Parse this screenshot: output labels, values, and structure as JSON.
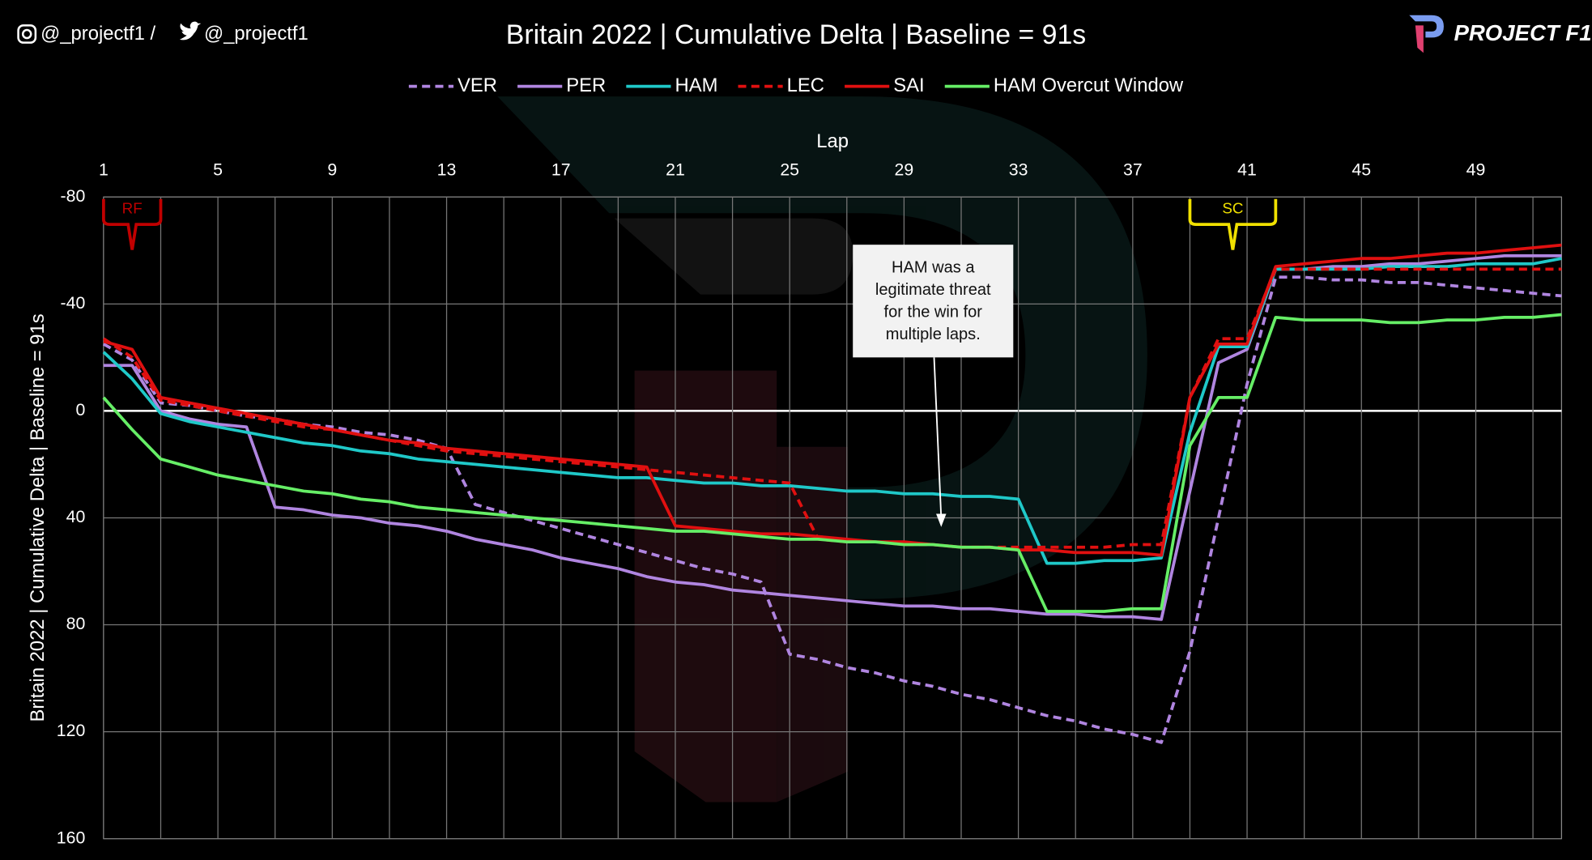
{
  "chart_data": {
    "type": "line",
    "title": "Britain 2022 | Cumulative Delta | Baseline = 91s",
    "handles": [
      "@_projectf1 / ",
      "@_projectf1"
    ],
    "brand": "PROJECT F1",
    "x_label": "Lap",
    "y_label": "Britain 2022 | Cumulative Delta | Baseline = 91s",
    "x": [
      1,
      2,
      3,
      4,
      5,
      6,
      7,
      8,
      9,
      10,
      11,
      12,
      13,
      14,
      15,
      16,
      17,
      18,
      19,
      20,
      21,
      22,
      23,
      24,
      25,
      26,
      27,
      28,
      29,
      30,
      31,
      32,
      33,
      34,
      35,
      36,
      37,
      38,
      39,
      40,
      41,
      42,
      43,
      44,
      45,
      46,
      47,
      48,
      49,
      50,
      51,
      52
    ],
    "xlim": [
      1,
      52
    ],
    "xticks": [
      1,
      5,
      9,
      13,
      17,
      21,
      25,
      29,
      33,
      37,
      41,
      45,
      49
    ],
    "ylim": [
      -80,
      160
    ],
    "yticks": [
      -80,
      -40,
      0,
      40,
      80,
      120,
      160
    ],
    "y_inverted": true,
    "grid": true,
    "series": [
      {
        "name": "VER",
        "color": "#b085e0",
        "dashed": true,
        "values": [
          -25,
          -19,
          -3,
          -2,
          0,
          2,
          3,
          5,
          6,
          8,
          9,
          11,
          14,
          35,
          38,
          41,
          44,
          47,
          50,
          53,
          56,
          59,
          61,
          64,
          91,
          93,
          96,
          98,
          101,
          103,
          106,
          108,
          111,
          114,
          116,
          119,
          121,
          124,
          90,
          40,
          -10,
          -50,
          -50,
          -49,
          -49,
          -48,
          -48,
          -47,
          -46,
          -45,
          -44,
          -43
        ]
      },
      {
        "name": "PER",
        "color": "#b085e0",
        "dashed": false,
        "values": [
          -17,
          -17,
          0,
          3,
          5,
          6,
          36,
          37,
          39,
          40,
          42,
          43,
          45,
          48,
          50,
          52,
          55,
          57,
          59,
          62,
          64,
          65,
          67,
          68,
          69,
          70,
          71,
          72,
          73,
          73,
          74,
          74,
          75,
          76,
          76,
          77,
          77,
          78,
          30,
          -18,
          -23,
          -53,
          -53,
          -54,
          -54,
          -55,
          -55,
          -56,
          -57,
          -58,
          -58,
          -58
        ]
      },
      {
        "name": "HAM",
        "color": "#1fc8c8",
        "dashed": false,
        "values": [
          -22,
          -12,
          1,
          4,
          6,
          8,
          10,
          12,
          13,
          15,
          16,
          18,
          19,
          20,
          21,
          22,
          23,
          24,
          25,
          25,
          26,
          27,
          27,
          28,
          28,
          29,
          30,
          30,
          31,
          31,
          32,
          32,
          33,
          57,
          57,
          56,
          56,
          55,
          8,
          -24,
          -24,
          -53,
          -53,
          -53,
          -53,
          -54,
          -54,
          -54,
          -55,
          -55,
          -55,
          -57
        ]
      },
      {
        "name": "LEC",
        "color": "#e01010",
        "dashed": true,
        "values": [
          -27,
          -20,
          -4,
          -2,
          0,
          2,
          4,
          6,
          7,
          9,
          11,
          13,
          15,
          16,
          17,
          18,
          19,
          20,
          21,
          22,
          23,
          24,
          25,
          26,
          27,
          48,
          49,
          49,
          50,
          50,
          51,
          51,
          51,
          51,
          51,
          51,
          50,
          50,
          -5,
          -27,
          -27,
          -53,
          -53,
          -53,
          -53,
          -53,
          -53,
          -53,
          -53,
          -53,
          -53,
          -53
        ]
      },
      {
        "name": "SAI",
        "color": "#e01010",
        "dashed": false,
        "values": [
          -26,
          -23,
          -5,
          -3,
          -1,
          1,
          3,
          5,
          7,
          9,
          11,
          12,
          14,
          15,
          16,
          17,
          18,
          19,
          20,
          21,
          43,
          44,
          45,
          46,
          46,
          47,
          48,
          49,
          49,
          50,
          51,
          51,
          52,
          52,
          53,
          53,
          53,
          54,
          -5,
          -25,
          -25,
          -54,
          -55,
          -56,
          -57,
          -57,
          -58,
          -59,
          -59,
          -60,
          -61,
          -62
        ]
      },
      {
        "name": "HAM Overcut Window",
        "color": "#66ee66",
        "dashed": false,
        "values": [
          -5,
          7,
          18,
          21,
          24,
          26,
          28,
          30,
          31,
          33,
          34,
          36,
          37,
          38,
          39,
          40,
          41,
          42,
          43,
          44,
          45,
          45,
          46,
          47,
          48,
          48,
          49,
          49,
          50,
          50,
          51,
          51,
          52,
          75,
          75,
          75,
          74,
          74,
          13,
          -5,
          -5,
          -35,
          -34,
          -34,
          -34,
          -33,
          -33,
          -34,
          -34,
          -35,
          -35,
          -36
        ]
      }
    ],
    "markers": [
      {
        "text": "RF",
        "x": [
          1,
          3
        ],
        "color": "#c00000"
      },
      {
        "text": "SC",
        "x": [
          39,
          42
        ],
        "color": "#f0e000"
      }
    ],
    "note": [
      "HAM was a",
      "legitimate threat",
      "for the win for",
      "multiple laps."
    ]
  }
}
